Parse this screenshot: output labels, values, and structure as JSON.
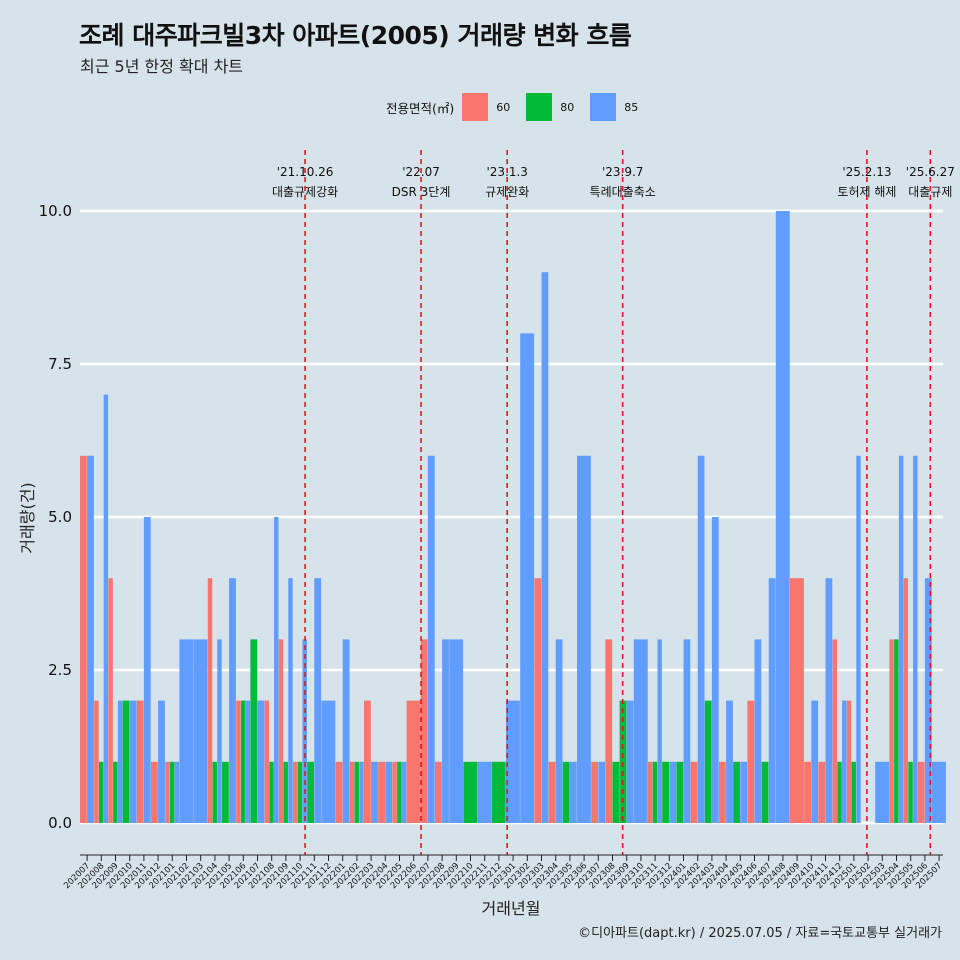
{
  "title": "조례 대주파크빌3차 아파트(2005) 거래량 변화 흐름",
  "subtitle": "최근 5년 한정 확대 차트",
  "legend": {
    "title": "전용면적(㎡)",
    "items": [
      {
        "label": "60",
        "color": "#f8766d"
      },
      {
        "label": "80",
        "color": "#00ba38"
      },
      {
        "label": "85",
        "color": "#619cff"
      }
    ]
  },
  "caption": "©디아파트(dapt.kr) / 2025.07.05 / 자료=국토교통부 실거래가",
  "chart_data": {
    "type": "bar",
    "xlabel": "거래년월",
    "ylabel": "거래량(건)",
    "ylim": [
      0,
      10
    ],
    "y_ticks": [
      "0.0",
      "2.5",
      "5.0",
      "7.5",
      "10.0"
    ],
    "categories": [
      "202007",
      "202008",
      "202009",
      "202010",
      "202011",
      "202012",
      "202101",
      "202102",
      "202103",
      "202104",
      "202105",
      "202106",
      "202107",
      "202108",
      "202109",
      "202110",
      "202111",
      "202112",
      "202201",
      "202202",
      "202203",
      "202204",
      "202205",
      "202206",
      "202207",
      "202208",
      "202209",
      "202210",
      "202211",
      "202212",
      "202301",
      "202302",
      "202303",
      "202304",
      "202305",
      "202306",
      "202307",
      "202308",
      "202309",
      "202310",
      "202311",
      "202312",
      "202401",
      "202402",
      "202403",
      "202404",
      "202405",
      "202406",
      "202407",
      "202408",
      "202409",
      "202410",
      "202411",
      "202412",
      "202501",
      "202502",
      "202503",
      "202504",
      "202505",
      "202506",
      "202507"
    ],
    "series": [
      {
        "name": "60",
        "color": "#f8766d",
        "values": [
          6,
          2,
          4,
          0,
          2,
          1,
          1,
          0,
          0,
          4,
          0,
          2,
          0,
          2,
          3,
          1,
          0,
          0,
          1,
          1,
          2,
          1,
          1,
          2,
          3,
          1,
          0,
          0,
          0,
          0,
          0,
          0,
          4,
          1,
          0,
          0,
          1,
          3,
          0,
          0,
          1,
          0,
          0,
          1,
          0,
          1,
          0,
          2,
          0,
          0,
          4,
          1,
          1,
          3,
          2,
          0,
          0,
          3,
          4,
          1,
          0
        ]
      },
      {
        "name": "80",
        "color": "#00ba38",
        "values": [
          0,
          1,
          1,
          2,
          0,
          0,
          1,
          0,
          0,
          1,
          1,
          2,
          3,
          1,
          1,
          1,
          1,
          0,
          0,
          1,
          0,
          0,
          1,
          0,
          0,
          0,
          0,
          1,
          0,
          1,
          0,
          0,
          0,
          0,
          1,
          0,
          0,
          1,
          2,
          0,
          1,
          1,
          1,
          0,
          2,
          0,
          1,
          0,
          1,
          0,
          0,
          0,
          0,
          1,
          1,
          0,
          0,
          3,
          1,
          0,
          0
        ]
      },
      {
        "name": "85",
        "color": "#619cff",
        "values": [
          6,
          7,
          2,
          2,
          5,
          2,
          1,
          3,
          3,
          3,
          4,
          2,
          2,
          5,
          4,
          3,
          4,
          2,
          3,
          1,
          1,
          1,
          1,
          0,
          6,
          3,
          3,
          0,
          1,
          0,
          2,
          8,
          9,
          3,
          1,
          6,
          1,
          0,
          2,
          3,
          3,
          1,
          3,
          6,
          5,
          2,
          1,
          3,
          4,
          10,
          0,
          2,
          4,
          2,
          6,
          0,
          1,
          6,
          6,
          4,
          1
        ]
      }
    ],
    "events": [
      {
        "date": "'21.10.26",
        "label": "대출규제강화",
        "month": "202110",
        "day": 26
      },
      {
        "date": "'22.07",
        "label": "DSR 3단계",
        "month": "202207",
        "day": 1
      },
      {
        "date": "'23.1.3",
        "label": "규제완화",
        "month": "202301",
        "day": 3
      },
      {
        "date": "'23.9.7",
        "label": "특례대출축소",
        "month": "202309",
        "day": 7
      },
      {
        "date": "'25.2.13",
        "label": "토허제 해제",
        "month": "202502",
        "day": 13
      },
      {
        "date": "'25.6.27",
        "label": "대출규제",
        "month": "202506",
        "day": 27
      }
    ],
    "grid": true,
    "legend_position": "top"
  }
}
